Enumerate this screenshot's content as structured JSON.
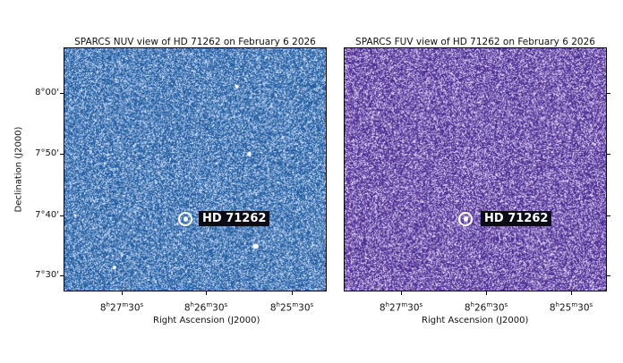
{
  "panels": [
    {
      "title": "SPARCS NUV view of HD 71262 on February 6 2026",
      "target_label": "HD 71262",
      "background_color": "#1f5a9e",
      "noise_color": "#cfe2ff"
    },
    {
      "title": "SPARCS FUV view of HD 71262 on February 6 2026",
      "target_label": "HD 71262",
      "background_color": "#4a2a8f",
      "noise_color": "#e6d8ff"
    }
  ],
  "axes": {
    "ylabel": "Declination (J2000)",
    "xlabel": "Right Ascension (J2000)",
    "yticks": [
      "8°00'",
      "7°50'",
      "7°40'",
      "7°30'"
    ],
    "xticks": [
      {
        "h": "8",
        "m": "27",
        "s": "30"
      },
      {
        "h": "8",
        "m": "26",
        "s": "30"
      },
      {
        "h": "8",
        "m": "25",
        "s": "30"
      }
    ]
  }
}
